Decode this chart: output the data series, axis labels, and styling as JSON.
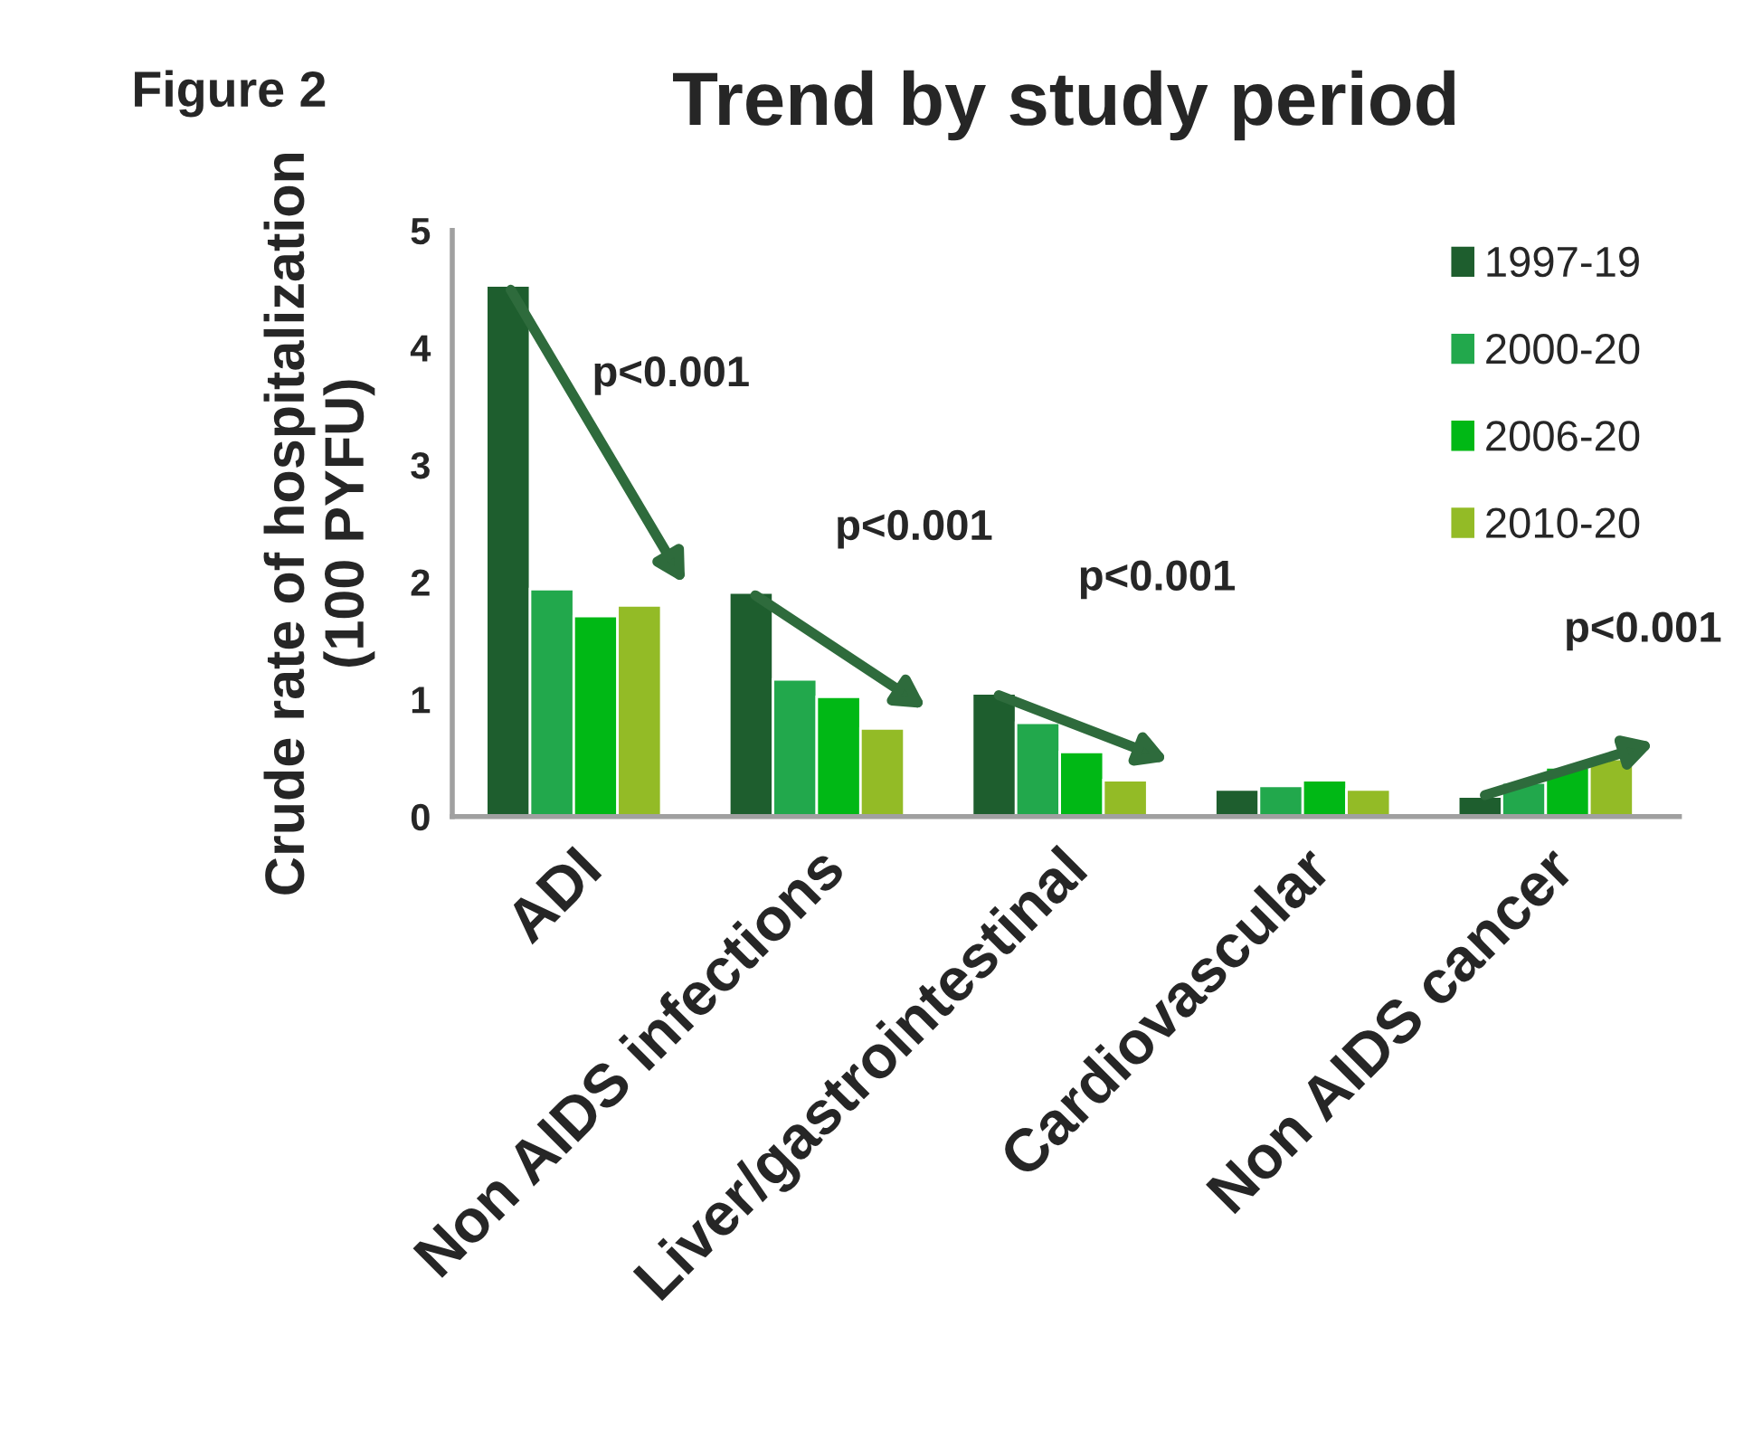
{
  "chart_data": {
    "type": "bar",
    "title": "Trend by study period",
    "ylabel": "Crude rate of hospitalization\n(100 PYFU)",
    "categories": [
      "ADI",
      "Non AIDS infections",
      "Liver/gastrointestinal",
      "Cardiovascular",
      "Non AIDS cancer"
    ],
    "series": [
      {
        "name": "1997-19",
        "color": "#1e5e2e",
        "values": [
          4.53,
          1.91,
          1.05,
          0.23,
          0.17
        ]
      },
      {
        "name": "2000-20",
        "color": "#22a84c",
        "values": [
          1.94,
          1.17,
          0.8,
          0.26,
          0.29
        ]
      },
      {
        "name": "2006-20",
        "color": "#00b815",
        "values": [
          1.71,
          1.02,
          0.55,
          0.31,
          0.42
        ]
      },
      {
        "name": "2010-20",
        "color": "#93bb26",
        "values": [
          1.8,
          0.75,
          0.31,
          0.23,
          0.49
        ]
      }
    ],
    "ylim": [
      0,
      5
    ],
    "yticks": [
      0,
      1,
      2,
      3,
      4,
      5
    ],
    "grid": false,
    "legend": "top right",
    "annotations": [
      "Figure 2",
      "p<0.001",
      "p<0.001",
      "p<0.001",
      "p<0.001"
    ]
  }
}
